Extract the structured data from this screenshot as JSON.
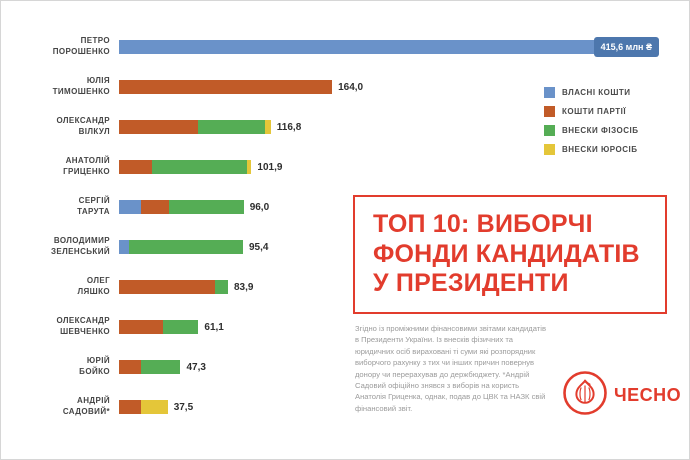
{
  "colors": {
    "own": "#6a92c9",
    "party": "#c15b28",
    "individuals": "#55ad55",
    "legal": "#e4c639",
    "badge_bg": "#4d77ad",
    "accent_red": "#e23c2d"
  },
  "legend": {
    "items": [
      {
        "key": "own",
        "label": "ВЛАСНІ КОШТИ"
      },
      {
        "key": "party",
        "label": "КОШТИ ПАРТІЇ"
      },
      {
        "key": "individuals",
        "label": "ВНЕСКИ ФІЗОСІБ"
      },
      {
        "key": "legal",
        "label": "ВНЕСКИ ЮРОСІБ"
      }
    ]
  },
  "title": {
    "lines": [
      "ТОП 10: ВИБОРЧІ",
      "ФОНДИ КАНДИДАТІВ",
      "У ПРЕЗИДЕНТИ"
    ]
  },
  "note": {
    "text": "Згідно із проміжними фінансовими звітами кандидатів в Президенти України. Із внесків фізичних та юридичних осіб вираховані ті суми які розпорядник виборчого рахунку з тих чи інших причин повернув донору чи перерахував до держбюджету. *Андрій Садовий офіційно знявся з виборів на користь Анатолія Гриценка, однак, подав до ЦВК та НАЗК свій фінансовий звіт."
  },
  "logo": {
    "text": "ЧЕСНО"
  },
  "rows": [
    {
      "name_lines": [
        "ПЕТРО",
        "ПОРОШЕНКО"
      ],
      "value": 415.6,
      "value_label": "415,6 млн ₴",
      "badge": true,
      "segments": [
        {
          "key": "own",
          "value": 415.6
        }
      ]
    },
    {
      "name_lines": [
        "ЮЛІЯ",
        "ТИМОШЕНКО"
      ],
      "value": 164.0,
      "value_label": "164,0",
      "badge": false,
      "segments": [
        {
          "key": "party",
          "value": 164.0
        }
      ]
    },
    {
      "name_lines": [
        "ОЛЕКСАНДР",
        "ВІЛКУЛ"
      ],
      "value": 116.8,
      "value_label": "116,8",
      "badge": false,
      "segments": [
        {
          "key": "party",
          "value": 60.7
        },
        {
          "key": "individuals",
          "value": 51.4
        },
        {
          "key": "legal",
          "value": 4.7
        }
      ]
    },
    {
      "name_lines": [
        "АНАТОЛІЙ",
        "ГРИЦЕНКО"
      ],
      "value": 101.9,
      "value_label": "101,9",
      "badge": false,
      "segments": [
        {
          "key": "party",
          "value": 25.5
        },
        {
          "key": "individuals",
          "value": 73.4
        },
        {
          "key": "legal",
          "value": 3.0
        }
      ]
    },
    {
      "name_lines": [
        "СЕРГІЙ",
        "ТАРУТА"
      ],
      "value": 96.0,
      "value_label": "96,0",
      "badge": false,
      "segments": [
        {
          "key": "own",
          "value": 17.3
        },
        {
          "key": "party",
          "value": 21.1
        },
        {
          "key": "individuals",
          "value": 57.6
        }
      ]
    },
    {
      "name_lines": [
        "ВОЛОДИМИР",
        "ЗЕЛЕНСЬКИЙ"
      ],
      "value": 95.4,
      "value_label": "95,4",
      "badge": false,
      "segments": [
        {
          "key": "own",
          "value": 7.6
        },
        {
          "key": "individuals",
          "value": 87.8
        }
      ]
    },
    {
      "name_lines": [
        "ОЛЕГ",
        "ЛЯШКО"
      ],
      "value": 83.9,
      "value_label": "83,9",
      "badge": false,
      "segments": [
        {
          "key": "party",
          "value": 73.8
        },
        {
          "key": "individuals",
          "value": 10.1
        }
      ]
    },
    {
      "name_lines": [
        "ОЛЕКСАНДР",
        "ШЕВЧЕНКО"
      ],
      "value": 61.1,
      "value_label": "61,1",
      "badge": false,
      "segments": [
        {
          "key": "party",
          "value": 33.6
        },
        {
          "key": "individuals",
          "value": 27.5
        }
      ]
    },
    {
      "name_lines": [
        "ЮРІЙ",
        "БОЙКО"
      ],
      "value": 47.3,
      "value_label": "47,3",
      "badge": false,
      "segments": [
        {
          "key": "party",
          "value": 16.6
        },
        {
          "key": "individuals",
          "value": 30.7
        }
      ]
    },
    {
      "name_lines": [
        "АНДРІЙ",
        "САДОВИЙ*"
      ],
      "value": 37.5,
      "value_label": "37,5",
      "badge": false,
      "segments": [
        {
          "key": "party",
          "value": 16.9
        },
        {
          "key": "legal",
          "value": 20.6
        }
      ]
    }
  ],
  "chart_data": {
    "type": "bar",
    "orientation": "horizontal",
    "stacked": true,
    "title": "ТОП 10: ВИБОРЧІ ФОНДИ КАНДИДАТІВ У ПРЕЗИДЕНТИ",
    "unit": "млн ₴",
    "max_value": 415.6,
    "legend_position": "top-right",
    "grid": false,
    "categories": [
      "ПЕТРО ПОРОШЕНКО",
      "ЮЛІЯ ТИМОШЕНКО",
      "ОЛЕКСАНДР ВІЛКУЛ",
      "АНАТОЛІЙ ГРИЦЕНКО",
      "СЕРГІЙ ТАРУТА",
      "ВОЛОДИМИР ЗЕЛЕНСЬКИЙ",
      "ОЛЕГ ЛЯШКО",
      "ОЛЕКСАНДР ШЕВЧЕНКО",
      "ЮРІЙ БОЙКО",
      "АНДРІЙ САДОВИЙ*"
    ],
    "totals": [
      415.6,
      164.0,
      116.8,
      101.9,
      96.0,
      95.4,
      83.9,
      61.1,
      47.3,
      37.5
    ],
    "value_labels": [
      "415,6 млн ₴",
      "164,0",
      "116,8",
      "101,9",
      "96,0",
      "95,4",
      "83,9",
      "61,1",
      "47,3",
      "37,5"
    ],
    "series": [
      {
        "name": "ВЛАСНІ КОШТИ",
        "color": "#6a92c9",
        "values": [
          415.6,
          0,
          0,
          0,
          17.3,
          7.6,
          0,
          0,
          0,
          0
        ]
      },
      {
        "name": "КОШТИ ПАРТІЇ",
        "color": "#c15b28",
        "values": [
          0,
          164.0,
          60.7,
          25.5,
          21.1,
          0,
          73.8,
          33.6,
          16.6,
          16.9
        ]
      },
      {
        "name": "ВНЕСКИ ФІЗОСІБ",
        "color": "#55ad55",
        "values": [
          0,
          0,
          51.4,
          73.4,
          57.6,
          87.8,
          10.1,
          27.5,
          30.7,
          0
        ]
      },
      {
        "name": "ВНЕСКИ ЮРОСІБ",
        "color": "#e4c639",
        "values": [
          0,
          0,
          4.7,
          3.0,
          0,
          0,
          0,
          0,
          0,
          20.6
        ]
      }
    ]
  }
}
